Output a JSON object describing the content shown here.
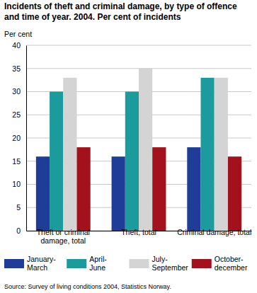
{
  "chart_data": {
    "type": "bar",
    "title": "Incidents of theft and criminal damage, by type of offence and time of year. 2004. Per cent of incidents",
    "y_label": "Per cent",
    "source": "Source: Survey of living conditions 2004, Statistics Norway.",
    "categories": [
      "Theft or criminal damage, total",
      "Theft, total",
      "Criminal damage, total"
    ],
    "series": [
      {
        "name": "January-March",
        "color": "#1f3c98",
        "values": [
          16,
          16,
          18
        ]
      },
      {
        "name": "April-June",
        "color": "#1b9b9b",
        "values": [
          30,
          30,
          33
        ]
      },
      {
        "name": "July-September",
        "color": "#d4d4d4",
        "values": [
          33,
          35,
          33
        ]
      },
      {
        "name": "October-december",
        "color": "#a3121c",
        "values": [
          18,
          18,
          16
        ]
      }
    ],
    "ylim": [
      0,
      40
    ],
    "yticks": [
      0,
      5,
      10,
      15,
      20,
      25,
      30,
      35,
      40
    ],
    "grid": true,
    "legend": "bottom"
  }
}
